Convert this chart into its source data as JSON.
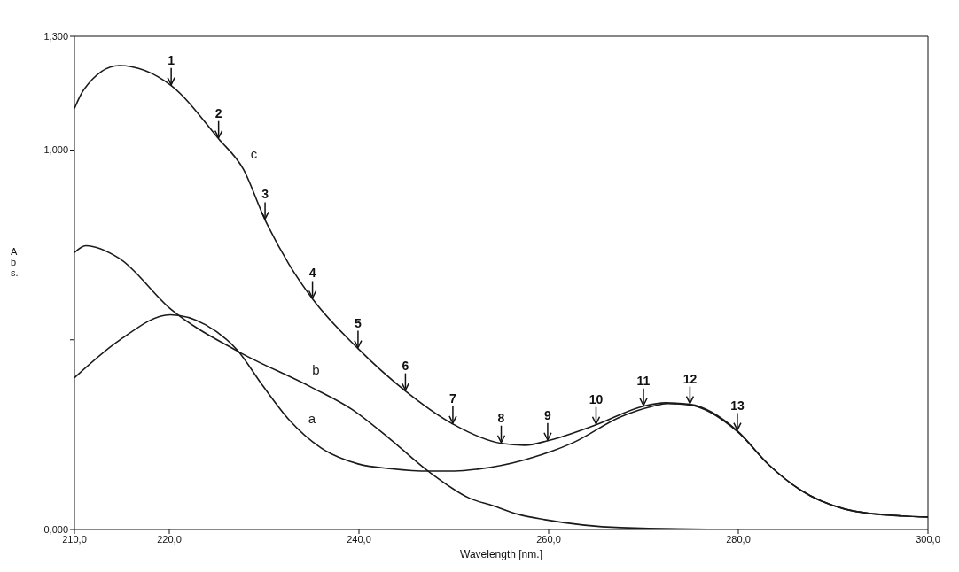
{
  "chart_data": {
    "type": "line",
    "xlabel": "Wavelength [nm.]",
    "ylabel": "Abs.",
    "xlim": [
      210,
      300
    ],
    "ylim": [
      0,
      1.3
    ],
    "xticks": [
      {
        "value": 210,
        "label": "210,0"
      },
      {
        "value": 220,
        "label": "220,0"
      },
      {
        "value": 240,
        "label": "240,0"
      },
      {
        "value": 260,
        "label": "260,0"
      },
      {
        "value": 280,
        "label": "280,0"
      },
      {
        "value": 300,
        "label": "300,0"
      }
    ],
    "yticks": [
      {
        "value": 0,
        "label": "0,000"
      },
      {
        "value": 0.5,
        "label": null
      },
      {
        "value": 1,
        "label": "1,000"
      },
      {
        "value": 1.3,
        "label": "1,300"
      }
    ],
    "series": [
      {
        "name": "a",
        "color": "#1a1a1a",
        "x": [
          210,
          214.7,
          220.1,
          223.8,
          227.2,
          229.8,
          232.6,
          236,
          239.9,
          243.5,
          247.4,
          250.1,
          252.5,
          257.5,
          262.6,
          267.6,
          271,
          272.5,
          274.9,
          279.9,
          283.2,
          286.5,
          291.2,
          296.3,
          300
        ],
        "values": [
          0.4,
          0.498,
          0.566,
          0.54,
          0.472,
          0.381,
          0.29,
          0.215,
          0.173,
          0.16,
          0.154,
          0.154,
          0.159,
          0.184,
          0.229,
          0.297,
          0.325,
          0.332,
          0.328,
          0.258,
          0.171,
          0.105,
          0.054,
          0.037,
          0.033
        ]
      },
      {
        "name": "b",
        "color": "#1a1a1a",
        "x": [
          210,
          211.2,
          214.7,
          220.1,
          227.2,
          234.9,
          239.3,
          243.3,
          247.4,
          251.7,
          254.1,
          256.8,
          259.6,
          267.6,
          280,
          300
        ],
        "values": [
          0.73,
          0.748,
          0.715,
          0.582,
          0.47,
          0.376,
          0.316,
          0.238,
          0.152,
          0.082,
          0.063,
          0.04,
          0.026,
          0.005,
          0,
          0
        ]
      },
      {
        "name": "c",
        "color": "#1a1a1a",
        "x": [
          210,
          211,
          214.7,
          220.2,
          225.2,
          227.8,
          230.1,
          232.6,
          235.1,
          239.9,
          244.9,
          249.9,
          255,
          257.5,
          259.9,
          265,
          270,
          272.3,
          274.9,
          279.9,
          283.2,
          286.5,
          291.2,
          296.3,
          300
        ],
        "values": [
          1.11,
          1.16,
          1.223,
          1.17,
          1.03,
          0.95,
          0.816,
          0.7,
          0.608,
          0.477,
          0.365,
          0.278,
          0.227,
          0.222,
          0.234,
          0.276,
          0.325,
          0.334,
          0.33,
          0.26,
          0.171,
          0.105,
          0.054,
          0.037,
          0.033
        ]
      }
    ],
    "annotations": [
      {
        "text": "1",
        "x": 220.2,
        "y": 1.17
      },
      {
        "text": "2",
        "x": 225.2,
        "y": 1.03
      },
      {
        "text": "3",
        "x": 230.1,
        "y": 0.816
      },
      {
        "text": "4",
        "x": 235.1,
        "y": 0.608
      },
      {
        "text": "5",
        "x": 239.9,
        "y": 0.477
      },
      {
        "text": "6",
        "x": 244.9,
        "y": 0.365
      },
      {
        "text": "7",
        "x": 249.9,
        "y": 0.278
      },
      {
        "text": "8",
        "x": 255,
        "y": 0.227
      },
      {
        "text": "9",
        "x": 259.9,
        "y": 0.234
      },
      {
        "text": "10",
        "x": 265,
        "y": 0.276
      },
      {
        "text": "11",
        "x": 270,
        "y": 0.325
      },
      {
        "text": "12",
        "x": 274.9,
        "y": 0.33
      },
      {
        "text": "13",
        "x": 279.9,
        "y": 0.26
      }
    ]
  }
}
